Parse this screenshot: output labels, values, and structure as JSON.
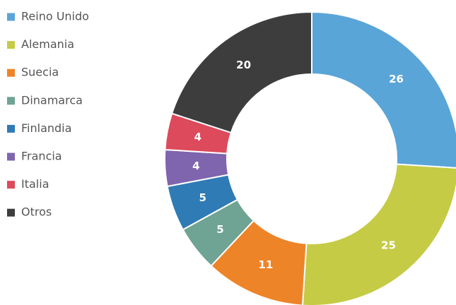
{
  "chart_data": {
    "type": "donut",
    "categories": [
      "Reino Unido",
      "Alemania",
      "Suecia",
      "Dinamarca",
      "Finlandia",
      "Francia",
      "Italia",
      "Otros"
    ],
    "values": [
      26,
      25,
      11,
      5,
      5,
      4,
      4,
      20
    ],
    "colors": [
      "#5aa5d8",
      "#c5cb45",
      "#ee8428",
      "#6fa393",
      "#2f7bb5",
      "#7e65ae",
      "#dc4a5c",
      "#3d3d3d"
    ],
    "legend": "left"
  }
}
